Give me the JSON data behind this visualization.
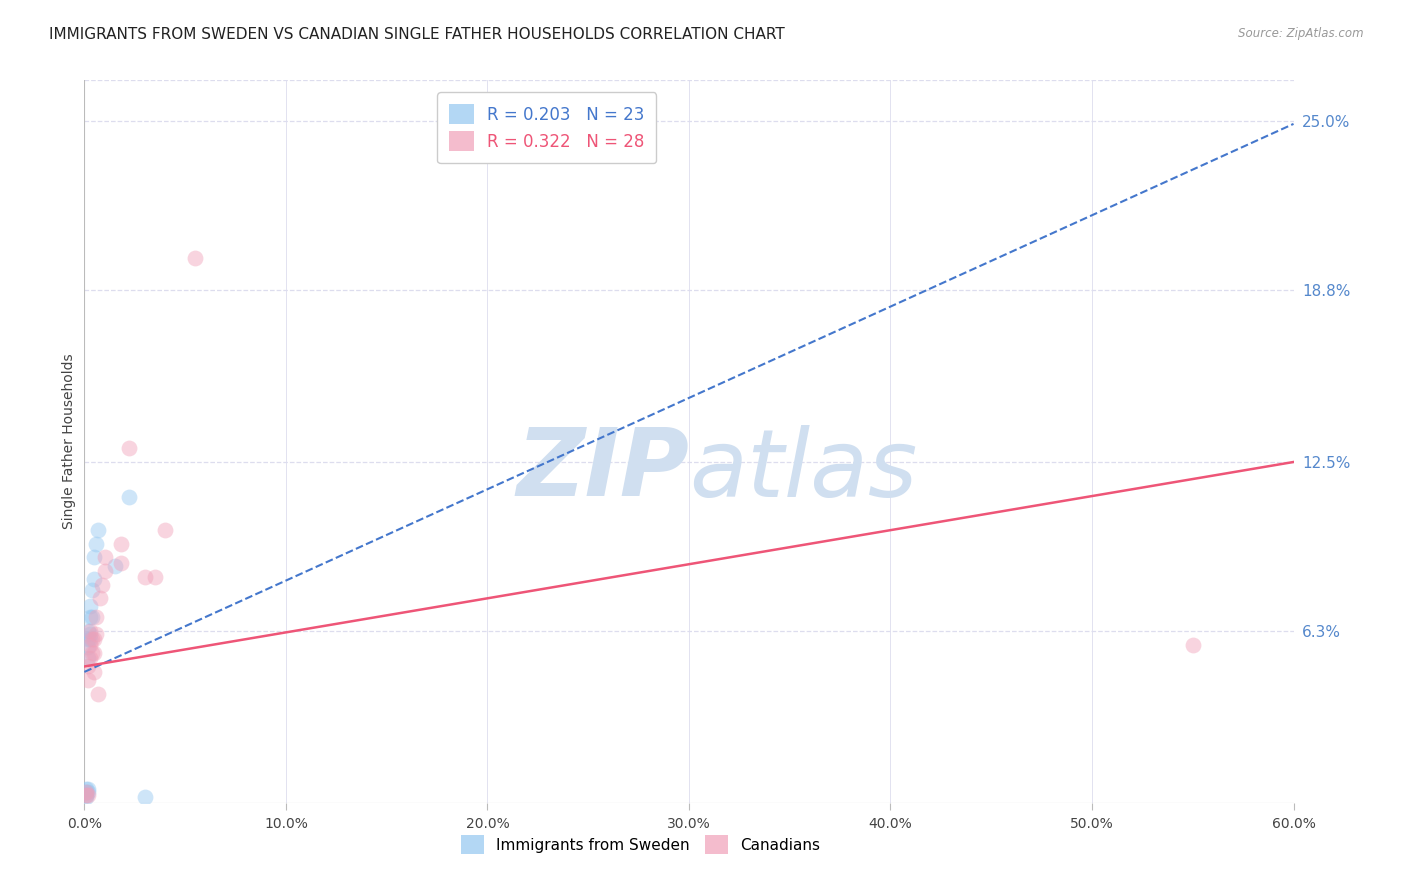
{
  "title": "IMMIGRANTS FROM SWEDEN VS CANADIAN SINGLE FATHER HOUSEHOLDS CORRELATION CHART",
  "source": "Source: ZipAtlas.com",
  "ylabel": "Single Father Households",
  "xlim": [
    0.0,
    0.6
  ],
  "ylim": [
    0.0,
    0.265
  ],
  "xtick_labels": [
    "0.0%",
    "10.0%",
    "20.0%",
    "30.0%",
    "40.0%",
    "50.0%",
    "60.0%"
  ],
  "xtick_values": [
    0.0,
    0.1,
    0.2,
    0.3,
    0.4,
    0.5,
    0.6
  ],
  "right_ytick_labels": [
    "25.0%",
    "18.8%",
    "12.5%",
    "6.3%"
  ],
  "right_ytick_values": [
    0.25,
    0.188,
    0.125,
    0.063
  ],
  "hgrid_values": [
    0.25,
    0.188,
    0.125,
    0.063
  ],
  "blue_scatter_x": [
    0.001,
    0.001,
    0.001,
    0.001,
    0.002,
    0.002,
    0.002,
    0.002,
    0.002,
    0.002,
    0.003,
    0.003,
    0.003,
    0.003,
    0.004,
    0.004,
    0.005,
    0.005,
    0.006,
    0.007,
    0.015,
    0.022,
    0.03
  ],
  "blue_scatter_y": [
    0.002,
    0.003,
    0.004,
    0.005,
    0.004,
    0.005,
    0.053,
    0.057,
    0.06,
    0.063,
    0.06,
    0.062,
    0.068,
    0.072,
    0.068,
    0.078,
    0.082,
    0.09,
    0.095,
    0.1,
    0.087,
    0.112,
    0.002
  ],
  "pink_scatter_x": [
    0.001,
    0.001,
    0.002,
    0.002,
    0.002,
    0.003,
    0.003,
    0.003,
    0.004,
    0.004,
    0.005,
    0.005,
    0.005,
    0.006,
    0.006,
    0.007,
    0.008,
    0.009,
    0.01,
    0.01,
    0.018,
    0.018,
    0.022,
    0.03,
    0.035,
    0.04,
    0.055,
    0.55
  ],
  "pink_scatter_y": [
    0.003,
    0.004,
    0.003,
    0.045,
    0.05,
    0.053,
    0.058,
    0.063,
    0.055,
    0.06,
    0.048,
    0.055,
    0.06,
    0.062,
    0.068,
    0.04,
    0.075,
    0.08,
    0.085,
    0.09,
    0.088,
    0.095,
    0.13,
    0.083,
    0.083,
    0.1,
    0.2,
    0.058
  ],
  "blue_line_intercept": 0.048,
  "blue_line_slope": 0.335,
  "pink_line_intercept": 0.05,
  "pink_line_slope": 0.125,
  "scatter_size": 130,
  "scatter_alpha": 0.45,
  "blue_color": "#93c6f0",
  "pink_color": "#f0a0b8",
  "blue_line_color": "#4477cc",
  "pink_line_color": "#ee5577",
  "watermark_color": "#d0dff0",
  "background_color": "#ffffff",
  "grid_color": "#ddddee",
  "title_fontsize": 11,
  "axis_label_fontsize": 10,
  "tick_fontsize": 10,
  "right_tick_color": "#5588cc"
}
